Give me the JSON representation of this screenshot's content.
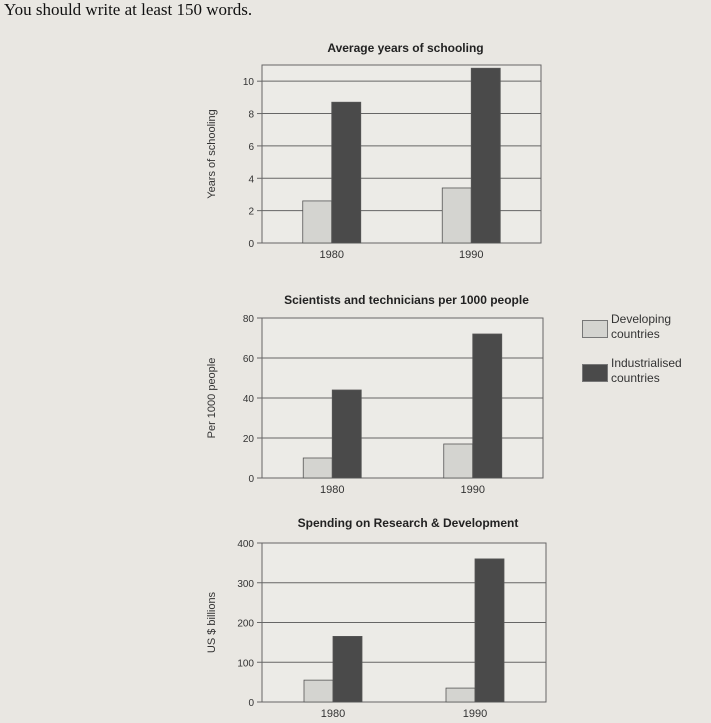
{
  "instruction": "You should write at least 150 words.",
  "colors": {
    "developing": "#d4d4d0",
    "industrialised": "#4a4a4a",
    "axis": "#555555"
  },
  "legend": [
    {
      "label": "Developing countries",
      "color": "#d4d4d0"
    },
    {
      "label": "Industrialised countries",
      "color": "#4a4a4a"
    }
  ],
  "chart_data": [
    {
      "type": "bar",
      "title": "Average years of schooling",
      "ylabel": "Years of schooling",
      "xlabel": "",
      "categories": [
        "1980",
        "1990"
      ],
      "yticks": [
        0,
        2,
        4,
        6,
        8,
        10
      ],
      "ylim": [
        0,
        11
      ],
      "grid": true,
      "legend_position": "right",
      "series": [
        {
          "name": "Developing countries",
          "values": [
            2.6,
            3.4
          ]
        },
        {
          "name": "Industrialised countries",
          "values": [
            8.7,
            10.8
          ]
        }
      ]
    },
    {
      "type": "bar",
      "title": "Scientists and technicians per 1000 people",
      "ylabel": "Per 1000 people",
      "xlabel": "",
      "categories": [
        "1980",
        "1990"
      ],
      "yticks": [
        0,
        20,
        40,
        60,
        80
      ],
      "ylim": [
        0,
        80
      ],
      "grid": true,
      "legend_position": "right",
      "series": [
        {
          "name": "Developing countries",
          "values": [
            10,
            17
          ]
        },
        {
          "name": "Industrialised countries",
          "values": [
            44,
            72
          ]
        }
      ]
    },
    {
      "type": "bar",
      "title": "Spending on Research & Development",
      "ylabel": "US $ billions",
      "xlabel": "",
      "categories": [
        "1980",
        "1990"
      ],
      "yticks": [
        0,
        100,
        200,
        300,
        400
      ],
      "ylim": [
        0,
        400
      ],
      "grid": true,
      "legend_position": "right",
      "series": [
        {
          "name": "Developing countries",
          "values": [
            55,
            35
          ]
        },
        {
          "name": "Industrialised countries",
          "values": [
            165,
            360
          ]
        }
      ]
    }
  ]
}
